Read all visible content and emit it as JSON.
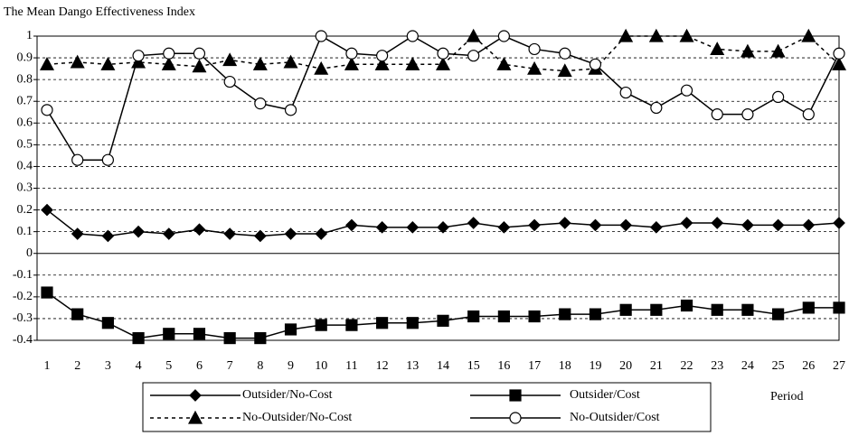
{
  "chart_data": {
    "type": "line",
    "title": "The Mean Dango Effectiveness Index",
    "x_label": "Period",
    "categories": [
      "1",
      "2",
      "3",
      "4",
      "5",
      "6",
      "7",
      "8",
      "9",
      "10",
      "11",
      "12",
      "13",
      "14",
      "15",
      "16",
      "17",
      "18",
      "19",
      "20",
      "21",
      "22",
      "23",
      "24",
      "25",
      "26",
      "27"
    ],
    "ylim": [
      -0.4,
      1
    ],
    "yticks": [
      1,
      0.9,
      0.8,
      0.7,
      0.6,
      0.5,
      0.4,
      0.3,
      0.2,
      0.1,
      0,
      -0.1,
      -0.2,
      -0.3,
      -0.4
    ],
    "grid": true,
    "legend": "bottom",
    "series": [
      {
        "name": "Outsider/No-Cost",
        "color": "#000000",
        "marker": "diamond",
        "line_style": "solid",
        "values": [
          0.2,
          0.09,
          0.08,
          0.1,
          0.09,
          0.11,
          0.09,
          0.08,
          0.09,
          0.09,
          0.13,
          0.12,
          0.12,
          0.12,
          0.14,
          0.12,
          0.13,
          0.14,
          0.13,
          0.13,
          0.12,
          0.14,
          0.14,
          0.13,
          0.13,
          0.13,
          0.14
        ]
      },
      {
        "name": "Outsider/Cost",
        "color": "#000000",
        "marker": "square",
        "line_style": "solid",
        "values": [
          -0.18,
          -0.28,
          -0.32,
          -0.39,
          -0.37,
          -0.37,
          -0.39,
          -0.39,
          -0.35,
          -0.33,
          -0.33,
          -0.32,
          -0.32,
          -0.31,
          -0.29,
          -0.29,
          -0.29,
          -0.28,
          -0.28,
          -0.26,
          -0.26,
          -0.24,
          -0.26,
          -0.26,
          -0.28,
          -0.25,
          -0.25
        ]
      },
      {
        "name": "No-Outsider/No-Cost",
        "color": "#000000",
        "marker": "triangle",
        "line_style": "dashed",
        "values": [
          0.87,
          0.88,
          0.87,
          0.88,
          0.87,
          0.86,
          0.89,
          0.87,
          0.88,
          0.85,
          0.87,
          0.87,
          0.87,
          0.87,
          1.0,
          0.87,
          0.85,
          0.84,
          0.85,
          1.0,
          1.0,
          1.0,
          0.94,
          0.93,
          0.93,
          1.0,
          0.87
        ]
      },
      {
        "name": "No-Outsider/Cost",
        "color": "#000000",
        "marker": "circle",
        "line_style": "solid",
        "values": [
          0.66,
          0.43,
          0.43,
          0.91,
          0.92,
          0.92,
          0.79,
          0.69,
          0.66,
          1.0,
          0.92,
          0.91,
          1.0,
          0.92,
          0.91,
          1.0,
          0.94,
          0.92,
          0.87,
          0.74,
          0.67,
          0.75,
          0.64,
          0.64,
          0.72,
          0.64,
          0.92
        ]
      }
    ]
  }
}
